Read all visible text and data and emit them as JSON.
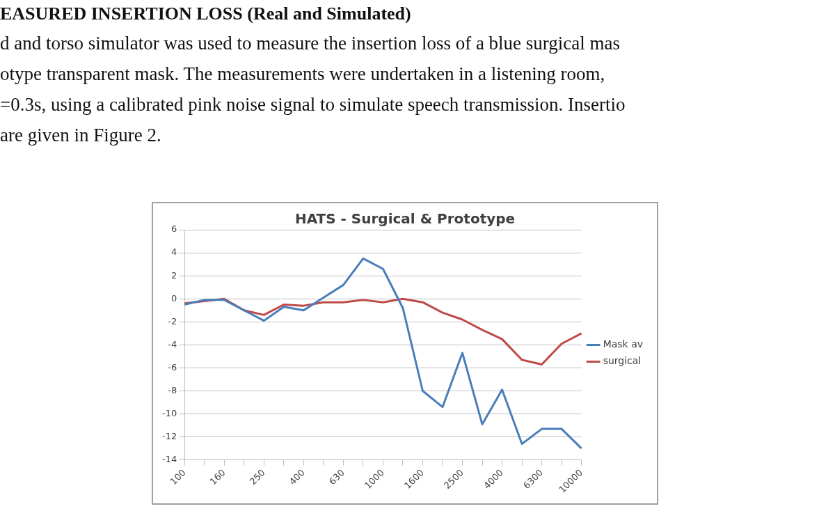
{
  "chart_data": {
    "type": "line",
    "title": "HATS - Surgical & Prototype",
    "annotations": [
      "EASURED INSERTION LOSS (Real and Simulated)",
      "d and torso simulator was used to measure the insertion loss of a blue surgical mas",
      "otype transparent mask. The measurements were undertaken in a listening room,",
      "=0.3s, using a calibrated pink noise signal to simulate speech transmission. Insertio",
      "are given in Figure 2."
    ],
    "categories": [
      "100",
      null,
      "160",
      null,
      "250",
      null,
      "400",
      null,
      "630",
      null,
      "1000",
      null,
      "1600",
      null,
      "2500",
      null,
      "4000",
      null,
      "6300",
      null,
      "10000"
    ],
    "series": [
      {
        "name": "Mask av",
        "color": "#4a7ebb",
        "values": [
          -0.5,
          -0.1,
          -0.1,
          -1.0,
          -1.9,
          -0.7,
          -1.0,
          0.1,
          1.2,
          3.5,
          2.6,
          -0.8,
          -8.0,
          -9.4,
          -4.7,
          -10.9,
          -7.9,
          -12.6,
          -11.3,
          -11.3,
          -13.0
        ]
      },
      {
        "name": "surgical",
        "color": "#be4b48",
        "values": [
          -0.4,
          -0.2,
          0.0,
          -1.0,
          -1.4,
          -0.5,
          -0.6,
          -0.3,
          -0.3,
          -0.1,
          -0.3,
          0.0,
          -0.3,
          -1.2,
          -1.8,
          -2.7,
          -3.5,
          -5.3,
          -5.7,
          -3.9,
          -3.0
        ]
      }
    ],
    "ylim": [
      -14,
      6
    ],
    "yticks": [
      -14,
      -12,
      -10,
      -8,
      -6,
      -4,
      -2,
      0,
      2,
      4,
      6
    ],
    "grid": "y",
    "legend": "right",
    "marker": "none",
    "line_style": "solid"
  }
}
